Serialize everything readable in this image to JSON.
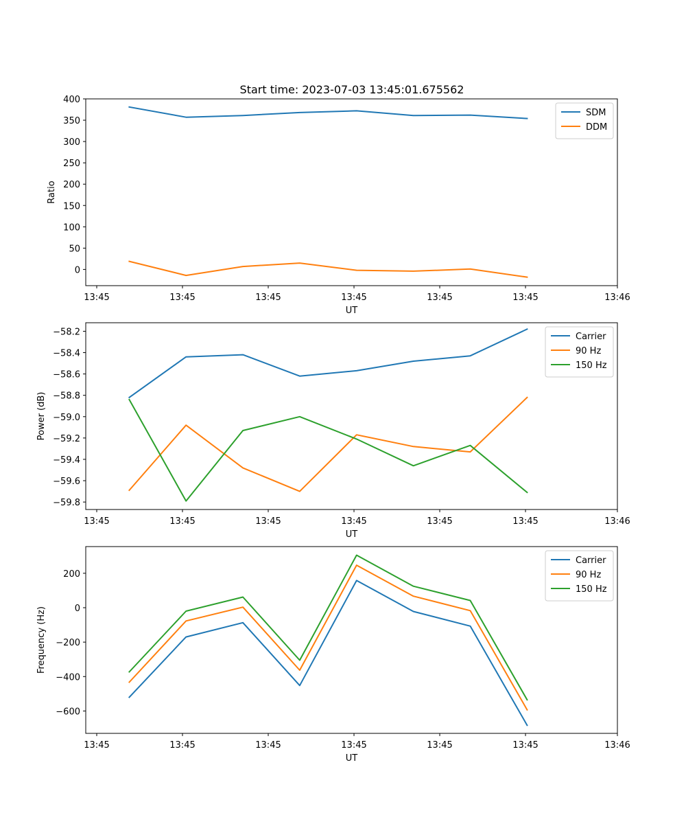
{
  "figure_title": "Start time: 2023-07-03 13:45:01.675562",
  "chart_data": [
    {
      "type": "line",
      "title": "Start time: 2023-07-03 13:45:01.675562",
      "xlabel": "UT",
      "ylabel": "Ratio",
      "x_tick_labels": [
        "13:45",
        "13:45",
        "13:45",
        "13:45",
        "13:45",
        "13:45",
        "13:46"
      ],
      "y_ticks": [
        0,
        50,
        100,
        150,
        200,
        250,
        300,
        350,
        400
      ],
      "y_tick_labels": [
        "0",
        "50",
        "100",
        "150",
        "200",
        "250",
        "300",
        "350",
        "400"
      ],
      "ylim": [
        -38,
        400
      ],
      "xlim": [
        0,
        1
      ],
      "x": [
        0.0818,
        0.1887,
        0.2956,
        0.4025,
        0.5094,
        0.6163,
        0.7232,
        0.8302
      ],
      "legend_position": "top-right",
      "series": [
        {
          "name": "SDM",
          "color": "#1f77b4",
          "values": [
            381,
            357,
            361,
            368,
            372,
            361,
            362,
            354
          ]
        },
        {
          "name": "DDM",
          "color": "#ff7f0e",
          "values": [
            19,
            -14,
            7,
            15,
            -2,
            -4,
            1,
            -18
          ]
        }
      ]
    },
    {
      "type": "line",
      "title": "",
      "xlabel": "UT",
      "ylabel": "Power (dB)",
      "x_tick_labels": [
        "13:45",
        "13:45",
        "13:45",
        "13:45",
        "13:45",
        "13:45",
        "13:46"
      ],
      "y_ticks": [
        -58.2,
        -58.4,
        -58.6,
        -58.8,
        -59.0,
        -59.2,
        -59.4,
        -59.6,
        -59.8
      ],
      "y_tick_labels": [
        "−58.2",
        "−58.4",
        "−58.6",
        "−58.8",
        "−59.0",
        "−59.2",
        "−59.4",
        "−59.6",
        "−59.8"
      ],
      "ylim": [
        -59.87,
        -58.12
      ],
      "xlim": [
        0,
        1
      ],
      "x": [
        0.0818,
        0.1887,
        0.2956,
        0.4025,
        0.5094,
        0.6163,
        0.7232,
        0.8302
      ],
      "legend_position": "top-right",
      "series": [
        {
          "name": "Carrier",
          "color": "#1f77b4",
          "values": [
            -58.82,
            -58.44,
            -58.42,
            -58.62,
            -58.57,
            -58.48,
            -58.43,
            -58.18
          ]
        },
        {
          "name": "90 Hz",
          "color": "#ff7f0e",
          "values": [
            -59.69,
            -59.08,
            -59.48,
            -59.7,
            -59.17,
            -59.28,
            -59.33,
            -58.82
          ]
        },
        {
          "name": "150 Hz",
          "color": "#2ca02c",
          "values": [
            -58.84,
            -59.79,
            -59.13,
            -59.0,
            -59.21,
            -59.46,
            -59.27,
            -59.71
          ]
        }
      ]
    },
    {
      "type": "line",
      "title": "",
      "xlabel": "UT",
      "ylabel": "Frequency (Hz)",
      "x_tick_labels": [
        "13:45",
        "13:45",
        "13:45",
        "13:45",
        "13:45",
        "13:45",
        "13:46"
      ],
      "y_ticks": [
        200,
        0,
        -200,
        -400,
        -600
      ],
      "y_tick_labels": [
        "200",
        "0",
        "−200",
        "−400",
        "−600"
      ],
      "ylim": [
        -730,
        355
      ],
      "xlim": [
        0,
        1
      ],
      "x": [
        0.0818,
        0.1887,
        0.2956,
        0.4025,
        0.5094,
        0.6163,
        0.7232,
        0.8302
      ],
      "legend_position": "top-right",
      "series": [
        {
          "name": "Carrier",
          "color": "#1f77b4",
          "values": [
            -520,
            -170,
            -87,
            -452,
            158,
            -22,
            -107,
            -683
          ]
        },
        {
          "name": "90 Hz",
          "color": "#ff7f0e",
          "values": [
            -433,
            -77,
            3,
            -363,
            247,
            67,
            -17,
            -593
          ]
        },
        {
          "name": "150 Hz",
          "color": "#2ca02c",
          "values": [
            -373,
            -20,
            62,
            -305,
            305,
            125,
            42,
            -535
          ]
        }
      ]
    }
  ]
}
